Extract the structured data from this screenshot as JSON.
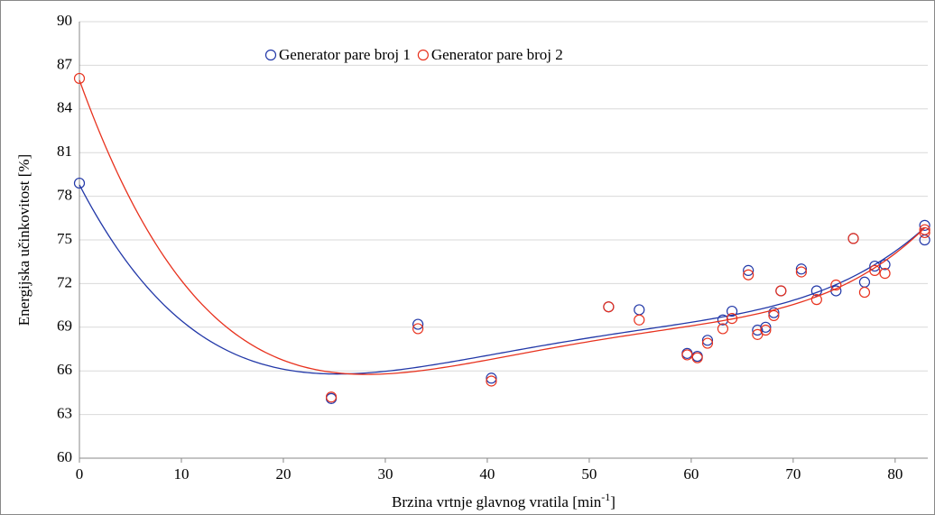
{
  "chart_data": {
    "type": "scatter",
    "x_label": [
      "Brzina vrtnje glavnog vratila [min",
      "-1",
      "]"
    ],
    "y_label": "Energijska učinkovitost [%]",
    "x": [
      0,
      24.7,
      33.2,
      40.4,
      51.9,
      54.9,
      59.6,
      60.6,
      61.6,
      63.1,
      64.0,
      65.6,
      66.5,
      67.3,
      68.1,
      68.8,
      70.8,
      72.3,
      74.2,
      75.9,
      77.0,
      78.0,
      79.0,
      82.9,
      82.9
    ],
    "series": [
      {
        "name": "Generator pare broj 1",
        "color": "#2238a8",
        "values": [
          78.9,
          64.1,
          69.2,
          65.5,
          70.4,
          70.2,
          67.2,
          67.0,
          68.1,
          69.5,
          70.1,
          72.9,
          68.8,
          69.0,
          70.0,
          71.5,
          73.0,
          71.5,
          71.5,
          75.1,
          72.1,
          73.2,
          73.3,
          76.0,
          75.0
        ]
      },
      {
        "name": "Generator pare broj 2",
        "color": "#e8321e",
        "values": [
          86.1,
          64.2,
          68.9,
          65.3,
          70.4,
          69.5,
          67.1,
          66.9,
          67.9,
          68.9,
          69.6,
          72.6,
          68.5,
          68.8,
          69.8,
          71.5,
          72.8,
          70.9,
          71.9,
          75.1,
          71.4,
          72.9,
          72.7,
          75.7,
          75.5
        ]
      }
    ],
    "trendline": {
      "type": "polynomial",
      "order": 4
    },
    "xlim": [
      0,
      83.2
    ],
    "xticks": [
      0,
      10,
      20,
      30,
      40,
      50,
      60,
      70,
      80
    ],
    "ylim": [
      60,
      90
    ],
    "yticks": [
      60,
      63,
      66,
      69,
      72,
      75,
      78,
      81,
      84,
      87,
      90
    ],
    "grid": true,
    "legend": "top"
  }
}
